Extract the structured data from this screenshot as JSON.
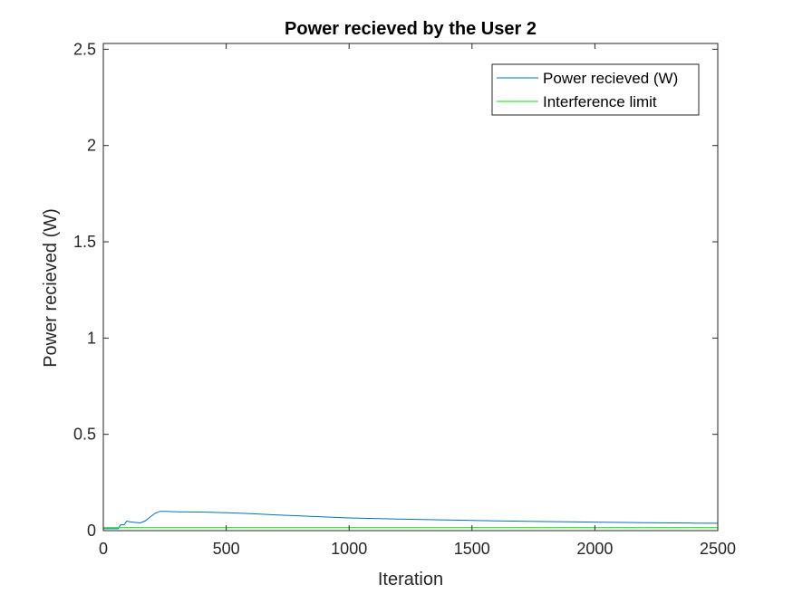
{
  "chart_data": {
    "type": "line",
    "title": "Power recieved by the User 2",
    "xlabel": "Iteration",
    "ylabel": "Power recieved (W)",
    "xlim": [
      0,
      2500
    ],
    "ylim": [
      0,
      2.53
    ],
    "xticks": [
      0,
      500,
      1000,
      1500,
      2000,
      2500
    ],
    "yticks": [
      0,
      0.5,
      1,
      1.5,
      2,
      2.5
    ],
    "xtick_labels": [
      "0",
      "500",
      "1000",
      "1500",
      "2000",
      "2500"
    ],
    "ytick_labels": [
      "0",
      "0.5",
      "1",
      "1.5",
      "2",
      "2.5"
    ],
    "grid": false,
    "legend_position": "top-right",
    "series": [
      {
        "name": "Power recieved (W)",
        "color": "#0072BD",
        "x": [
          0,
          60,
          70,
          85,
          95,
          110,
          150,
          170,
          190,
          210,
          230,
          250,
          300,
          350,
          420,
          500,
          600,
          700,
          800,
          900,
          1000,
          1200,
          1400,
          1600,
          1800,
          2000,
          2200,
          2400,
          2500
        ],
        "y": [
          0.01,
          0.01,
          0.03,
          0.03,
          0.05,
          0.045,
          0.04,
          0.05,
          0.07,
          0.09,
          0.1,
          0.1,
          0.098,
          0.097,
          0.096,
          0.093,
          0.088,
          0.082,
          0.076,
          0.071,
          0.066,
          0.06,
          0.055,
          0.051,
          0.047,
          0.044,
          0.041,
          0.039,
          0.038
        ]
      },
      {
        "name": "Interference limit",
        "color": "#00E000",
        "x": [
          0,
          2500
        ],
        "y": [
          0.015,
          0.015
        ]
      }
    ]
  }
}
